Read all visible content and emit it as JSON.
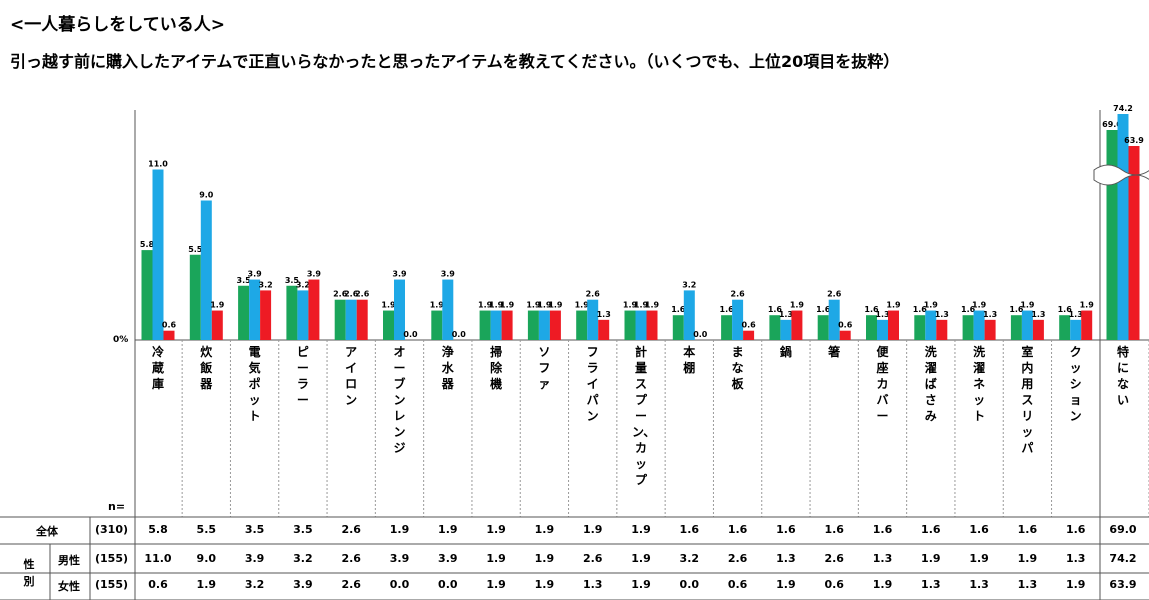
{
  "header": {
    "heading": "<一人暮らしをしている人>",
    "question": "引っ越す前に購入したアイテムで正直いらなかったと思ったアイテムを教えてください。（いくつでも、上位20項目を抜粋）"
  },
  "chart_data": {
    "type": "bar",
    "categories": [
      "冷蔵庫",
      "炊飯器",
      "電気ポット",
      "ピーラー",
      "アイロン",
      "オーブンレンジ",
      "浄水器",
      "掃除機",
      "ソファ",
      "フライパン",
      "計量スプーン、カップ",
      "本棚",
      "まな板",
      "鍋",
      "箸",
      "便座カバー",
      "洗濯ばさみ",
      "洗濯ネット",
      "室内用スリッパ",
      "クッション",
      "特にない"
    ],
    "series": [
      {
        "name": "全体",
        "color": "#1aa55a",
        "values": [
          5.8,
          5.5,
          3.5,
          3.5,
          2.6,
          1.9,
          1.9,
          1.9,
          1.9,
          1.9,
          1.9,
          1.6,
          1.6,
          1.6,
          1.6,
          1.6,
          1.6,
          1.6,
          1.6,
          1.6,
          69.0
        ]
      },
      {
        "name": "男性",
        "color": "#1ea8e6",
        "values": [
          11.0,
          9.0,
          3.9,
          3.2,
          2.6,
          3.9,
          3.9,
          1.9,
          1.9,
          2.6,
          1.9,
          3.2,
          2.6,
          1.3,
          2.6,
          1.3,
          1.9,
          1.9,
          1.9,
          1.3,
          74.2
        ]
      },
      {
        "name": "女性",
        "color": "#ee1b24",
        "values": [
          0.6,
          1.9,
          3.2,
          3.9,
          2.6,
          0.0,
          0.0,
          1.9,
          1.9,
          1.3,
          1.9,
          0.0,
          0.6,
          1.9,
          0.6,
          1.9,
          1.3,
          1.3,
          1.3,
          1.9,
          63.9
        ]
      }
    ],
    "ytick_label": "0%",
    "axis_break_category": "特にない"
  },
  "table": {
    "n_label": "n=",
    "gender_label": "性別",
    "rows": [
      {
        "label": "全体",
        "n": "(310)"
      },
      {
        "label": "男性",
        "n": "(155)"
      },
      {
        "label": "女性",
        "n": "(155)"
      }
    ]
  }
}
